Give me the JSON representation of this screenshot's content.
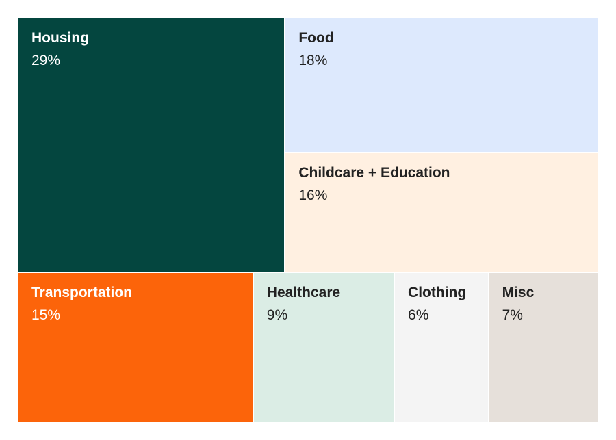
{
  "chart_data": {
    "type": "treemap",
    "title": "",
    "items": [
      {
        "label": "Housing",
        "value": 29,
        "value_label": "29%",
        "color": "#04463f",
        "text_color": "#ffffff"
      },
      {
        "label": "Food",
        "value": 18,
        "value_label": "18%",
        "color": "#dde9fd",
        "text_color": "#222222"
      },
      {
        "label": "Childcare + Education",
        "value": 16,
        "value_label": "16%",
        "color": "#fff0e1",
        "text_color": "#222222"
      },
      {
        "label": "Transportation",
        "value": 15,
        "value_label": "15%",
        "color": "#fc640a",
        "text_color": "#ffffff"
      },
      {
        "label": "Healthcare",
        "value": 9,
        "value_label": "9%",
        "color": "#dbede5",
        "text_color": "#222222"
      },
      {
        "label": "Clothing",
        "value": 6,
        "value_label": "6%",
        "color": "#f4f4f4",
        "text_color": "#222222"
      },
      {
        "label": "Misc",
        "value": 7,
        "value_label": "7%",
        "color": "#e6e0da",
        "text_color": "#222222"
      }
    ]
  }
}
